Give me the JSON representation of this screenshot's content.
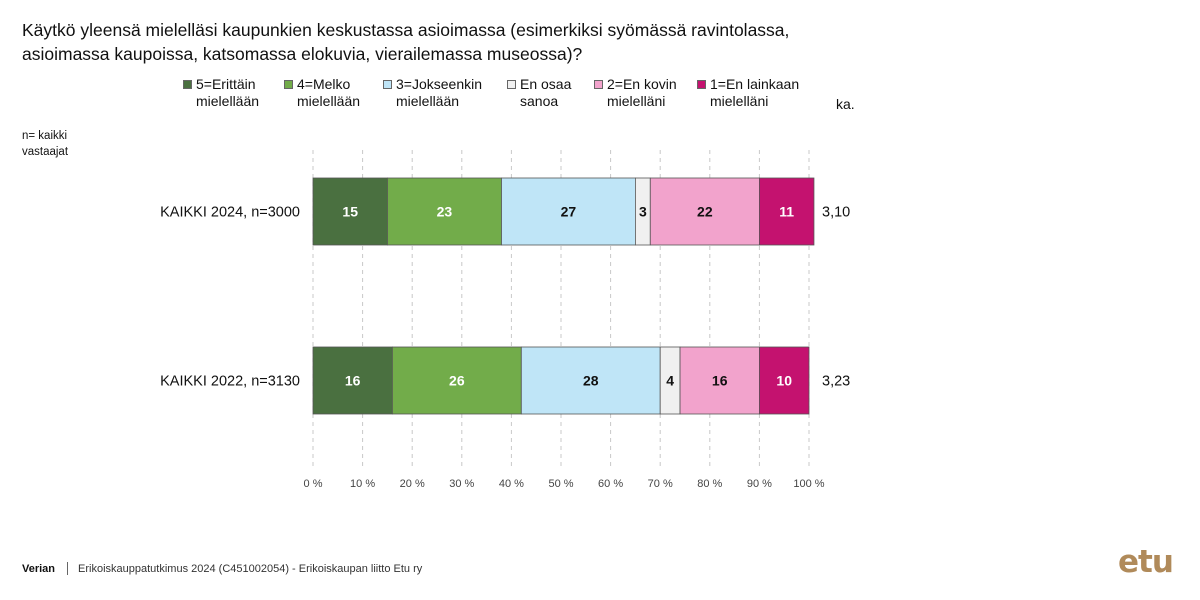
{
  "title": "Käytkö yleensä mielelläsi kaupunkien keskustassa asioimassa (esimerkiksi syömässä ravintolassa,\nasioimassa kaupoissa, katsomassa elokuvia, vierailemassa museossa)?",
  "n_note": "n= kaikki\nvastaajat",
  "avg_header": "ka.",
  "footer": {
    "brand": "Verian",
    "text": "Erikoiskauppatutkimus 2024 (C451002054)  -  Erikoiskaupan liitto Etu ry"
  },
  "logo_text": "etu",
  "chart_data": {
    "type": "bar",
    "orientation": "horizontal",
    "stacked": true,
    "categories": [
      "KAIKKI 2024, n=3000",
      "KAIKKI 2022, n=3130"
    ],
    "series": [
      {
        "name": "5=Erittäin\nmielellään",
        "color": "#4a7040",
        "text_color": "#ffffff",
        "values": [
          15,
          16
        ]
      },
      {
        "name": "4=Melko\nmielellään",
        "color": "#72ac4a",
        "text_color": "#ffffff",
        "values": [
          23,
          26
        ]
      },
      {
        "name": "3=Jokseenkin\nmielellään",
        "color": "#bfe5f7",
        "text_color": "#111111",
        "values": [
          27,
          28
        ]
      },
      {
        "name": "En osaa\nsanoa",
        "color": "#f0f0f0",
        "text_color": "#111111",
        "values": [
          3,
          4
        ]
      },
      {
        "name": "2=En kovin\nmielelläni",
        "color": "#f2a3cc",
        "text_color": "#111111",
        "values": [
          22,
          16
        ]
      },
      {
        "name": "1=En lainkaan\nmielelläni",
        "color": "#c4126f",
        "text_color": "#ffffff",
        "values": [
          11,
          10
        ]
      }
    ],
    "averages": [
      "3,10",
      "3,23"
    ],
    "x_ticks": [
      "0 %",
      "10 %",
      "20 %",
      "30 %",
      "40 %",
      "50 %",
      "60 %",
      "70 %",
      "80 %",
      "90 %",
      "100 %"
    ],
    "xlim": [
      0,
      100
    ],
    "grid": "vertical dashed",
    "legend_position": "top"
  }
}
